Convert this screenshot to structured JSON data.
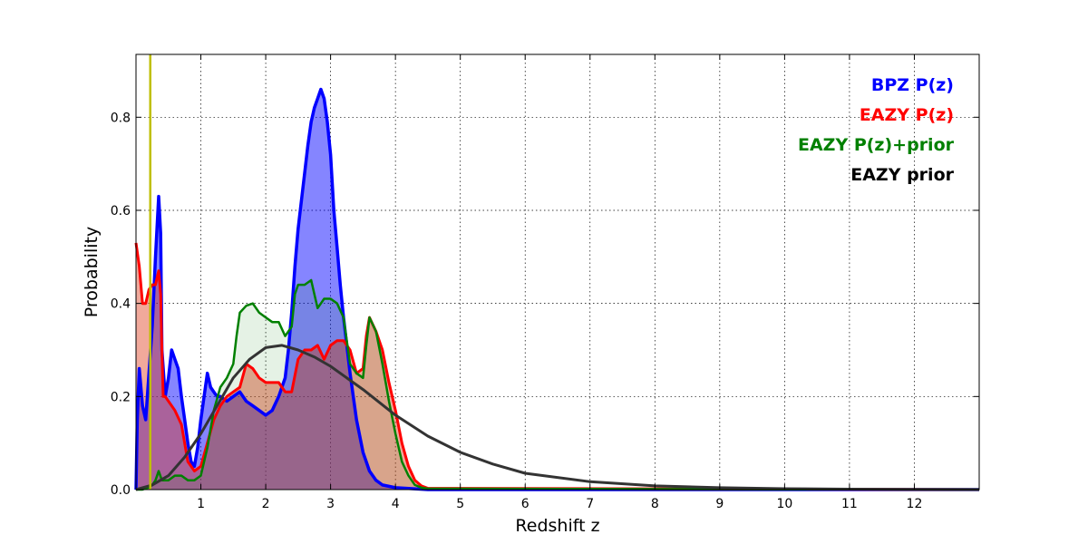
{
  "chart_data": {
    "type": "area",
    "xlabel": "Redshift z",
    "ylabel": "Probability",
    "xlim": [
      0,
      13
    ],
    "ylim": [
      0,
      0.935
    ],
    "x_ticks": [
      1,
      2,
      3,
      4,
      5,
      6,
      7,
      8,
      9,
      10,
      11,
      12
    ],
    "x_tick_labels": [
      "1",
      "2",
      "3",
      "4",
      "5",
      "6",
      "7",
      "8",
      "9",
      "10",
      "11",
      "12"
    ],
    "y_ticks": [
      0.0,
      0.2,
      0.4,
      0.6,
      0.8
    ],
    "y_tick_labels": [
      "0.0",
      "0.2",
      "0.4",
      "0.6",
      "0.8"
    ],
    "grid": true,
    "legend_position": "top-right",
    "vertical_marker": {
      "x": 0.22,
      "color": "#bfbf00"
    },
    "series": [
      {
        "name": "BPZ P(z)",
        "color": "#0000ff",
        "fill": "#0000ff",
        "fill_opacity": 0.48,
        "line_width": 3.5,
        "x": [
          0.0,
          0.02,
          0.05,
          0.1,
          0.15,
          0.2,
          0.25,
          0.3,
          0.35,
          0.38,
          0.4,
          0.45,
          0.5,
          0.55,
          0.6,
          0.65,
          0.7,
          0.75,
          0.8,
          0.85,
          0.9,
          0.95,
          1.0,
          1.05,
          1.1,
          1.15,
          1.2,
          1.25,
          1.3,
          1.4,
          1.5,
          1.6,
          1.7,
          1.8,
          1.9,
          2.0,
          2.1,
          2.2,
          2.3,
          2.35,
          2.4,
          2.45,
          2.5,
          2.55,
          2.6,
          2.65,
          2.7,
          2.75,
          2.8,
          2.85,
          2.9,
          2.95,
          3.0,
          3.05,
          3.1,
          3.15,
          3.2,
          3.3,
          3.4,
          3.5,
          3.6,
          3.7,
          3.8,
          4.0,
          4.5,
          13.0
        ],
        "y": [
          0.0,
          0.15,
          0.26,
          0.18,
          0.15,
          0.25,
          0.35,
          0.5,
          0.63,
          0.55,
          0.3,
          0.2,
          0.24,
          0.3,
          0.28,
          0.26,
          0.2,
          0.15,
          0.1,
          0.06,
          0.05,
          0.09,
          0.15,
          0.2,
          0.25,
          0.22,
          0.21,
          0.2,
          0.2,
          0.19,
          0.2,
          0.21,
          0.19,
          0.18,
          0.17,
          0.16,
          0.17,
          0.2,
          0.24,
          0.3,
          0.38,
          0.48,
          0.56,
          0.62,
          0.68,
          0.74,
          0.79,
          0.82,
          0.84,
          0.86,
          0.84,
          0.79,
          0.72,
          0.6,
          0.52,
          0.44,
          0.37,
          0.25,
          0.15,
          0.08,
          0.04,
          0.02,
          0.01,
          0.004,
          0.0,
          0.0
        ]
      },
      {
        "name": "EAZY P(z)",
        "color": "#ff0000",
        "fill": "#dd3311",
        "fill_opacity": 0.42,
        "line_width": 3,
        "x": [
          0.0,
          0.05,
          0.1,
          0.15,
          0.2,
          0.25,
          0.3,
          0.35,
          0.38,
          0.4,
          0.42,
          0.45,
          0.5,
          0.6,
          0.7,
          0.8,
          0.9,
          1.0,
          1.1,
          1.2,
          1.3,
          1.4,
          1.5,
          1.6,
          1.7,
          1.8,
          1.9,
          2.0,
          2.1,
          2.2,
          2.3,
          2.4,
          2.5,
          2.6,
          2.7,
          2.8,
          2.9,
          3.0,
          3.1,
          3.2,
          3.3,
          3.4,
          3.5,
          3.55,
          3.6,
          3.7,
          3.8,
          3.9,
          4.0,
          4.1,
          4.2,
          4.3,
          4.4,
          4.5,
          13.0
        ],
        "y": [
          0.53,
          0.48,
          0.4,
          0.4,
          0.43,
          0.44,
          0.44,
          0.47,
          0.42,
          0.3,
          0.2,
          0.2,
          0.19,
          0.17,
          0.14,
          0.06,
          0.04,
          0.05,
          0.1,
          0.15,
          0.18,
          0.2,
          0.21,
          0.22,
          0.27,
          0.26,
          0.24,
          0.23,
          0.23,
          0.23,
          0.21,
          0.21,
          0.28,
          0.3,
          0.3,
          0.31,
          0.28,
          0.31,
          0.32,
          0.32,
          0.3,
          0.25,
          0.26,
          0.33,
          0.37,
          0.34,
          0.3,
          0.23,
          0.17,
          0.1,
          0.05,
          0.02,
          0.008,
          0.003,
          0.0
        ]
      },
      {
        "name": "EAZY P(z)+prior",
        "color": "#008000",
        "fill": "#008000",
        "fill_opacity": 0.1,
        "line_width": 2.5,
        "x": [
          0.0,
          0.1,
          0.2,
          0.25,
          0.3,
          0.35,
          0.4,
          0.5,
          0.6,
          0.7,
          0.8,
          0.9,
          1.0,
          1.1,
          1.2,
          1.3,
          1.4,
          1.5,
          1.55,
          1.6,
          1.7,
          1.8,
          1.9,
          2.0,
          2.1,
          2.2,
          2.3,
          2.4,
          2.45,
          2.5,
          2.6,
          2.7,
          2.75,
          2.8,
          2.85,
          2.9,
          3.0,
          3.1,
          3.2,
          3.3,
          3.4,
          3.5,
          3.55,
          3.6,
          3.7,
          3.8,
          3.9,
          4.0,
          4.1,
          4.2,
          4.3,
          4.4,
          4.5,
          13.0
        ],
        "y": [
          0.0,
          0.0,
          0.005,
          0.01,
          0.02,
          0.04,
          0.02,
          0.02,
          0.03,
          0.03,
          0.02,
          0.02,
          0.03,
          0.09,
          0.17,
          0.22,
          0.24,
          0.27,
          0.33,
          0.38,
          0.395,
          0.4,
          0.38,
          0.37,
          0.36,
          0.36,
          0.33,
          0.35,
          0.42,
          0.44,
          0.44,
          0.45,
          0.42,
          0.39,
          0.4,
          0.41,
          0.41,
          0.4,
          0.37,
          0.27,
          0.25,
          0.24,
          0.31,
          0.37,
          0.34,
          0.27,
          0.19,
          0.12,
          0.06,
          0.03,
          0.01,
          0.004,
          0.002,
          0.0
        ]
      },
      {
        "name": "EAZY prior",
        "color": "#333333",
        "fill": null,
        "fill_opacity": 0,
        "line_width": 3,
        "x": [
          0.0,
          0.25,
          0.5,
          0.75,
          1.0,
          1.25,
          1.5,
          1.75,
          2.0,
          2.25,
          2.5,
          2.75,
          3.0,
          3.5,
          4.0,
          4.5,
          5.0,
          5.5,
          6.0,
          7.0,
          8.0,
          9.0,
          10.0,
          11.0,
          12.0,
          13.0
        ],
        "y": [
          0.0,
          0.01,
          0.03,
          0.07,
          0.12,
          0.18,
          0.24,
          0.28,
          0.305,
          0.31,
          0.3,
          0.285,
          0.265,
          0.215,
          0.16,
          0.115,
          0.08,
          0.055,
          0.035,
          0.017,
          0.008,
          0.004,
          0.002,
          0.001,
          0.0005,
          0.0002
        ]
      }
    ]
  }
}
